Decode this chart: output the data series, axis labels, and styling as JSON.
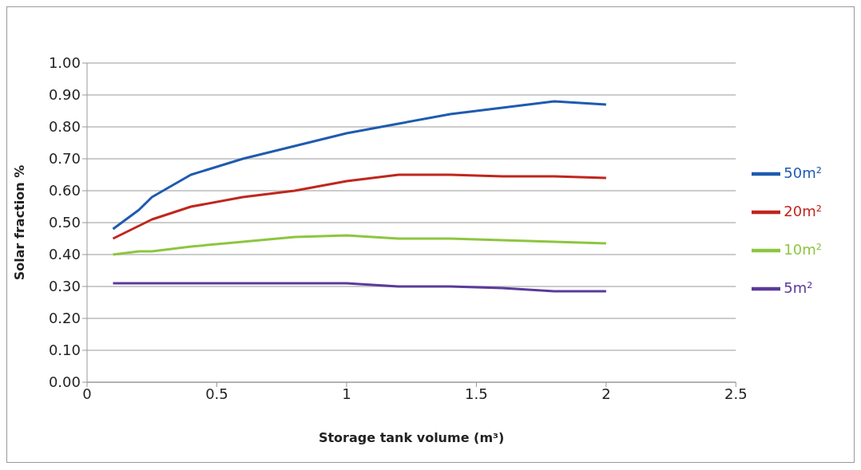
{
  "chart_data": {
    "type": "line",
    "xlabel": "Storage tank volume (m³)",
    "ylabel": "Solar fraction %",
    "x": [
      0.1,
      0.2,
      0.25,
      0.4,
      0.6,
      0.8,
      1.0,
      1.2,
      1.4,
      1.6,
      1.8,
      2.0
    ],
    "series": [
      {
        "name": "50m²",
        "color": "#1f5bb0",
        "values": [
          0.48,
          0.54,
          0.58,
          0.65,
          0.7,
          0.74,
          0.78,
          0.81,
          0.84,
          0.86,
          0.88,
          0.87
        ]
      },
      {
        "name": "20m²",
        "color": "#c0261d",
        "values": [
          0.45,
          0.49,
          0.51,
          0.55,
          0.58,
          0.6,
          0.63,
          0.65,
          0.65,
          0.645,
          0.645,
          0.64
        ]
      },
      {
        "name": "10m²",
        "color": "#8cc63f",
        "values": [
          0.4,
          0.41,
          0.41,
          0.425,
          0.44,
          0.455,
          0.46,
          0.45,
          0.45,
          0.445,
          0.44,
          0.435
        ]
      },
      {
        "name": "5m²",
        "color": "#5b3a9b",
        "values": [
          0.31,
          0.31,
          0.31,
          0.31,
          0.31,
          0.31,
          0.31,
          0.3,
          0.3,
          0.295,
          0.285,
          0.285
        ]
      }
    ],
    "xlim": [
      0,
      2.5
    ],
    "xticks": [
      0,
      0.5,
      1,
      1.5,
      2,
      2.5
    ],
    "ylim": [
      0,
      1
    ],
    "yticks": [
      {
        "value": 0,
        "label": "0.00"
      },
      {
        "value": 0.1,
        "label": "0.10"
      },
      {
        "value": 0.2,
        "label": "0.20"
      },
      {
        "value": 0.3,
        "label": "0.30"
      },
      {
        "value": 0.4,
        "label": "0.40"
      },
      {
        "value": 0.5,
        "label": "0.50"
      },
      {
        "value": 0.6,
        "label": "0.60"
      },
      {
        "value": 0.7,
        "label": "0.70"
      },
      {
        "value": 0.8,
        "label": "0.80"
      },
      {
        "value": 0.9,
        "label": "0.90"
      },
      {
        "value": 1,
        "label": "1.00"
      }
    ],
    "grid": "y",
    "legend": "right",
    "marker": "none",
    "line_style": "solid"
  }
}
